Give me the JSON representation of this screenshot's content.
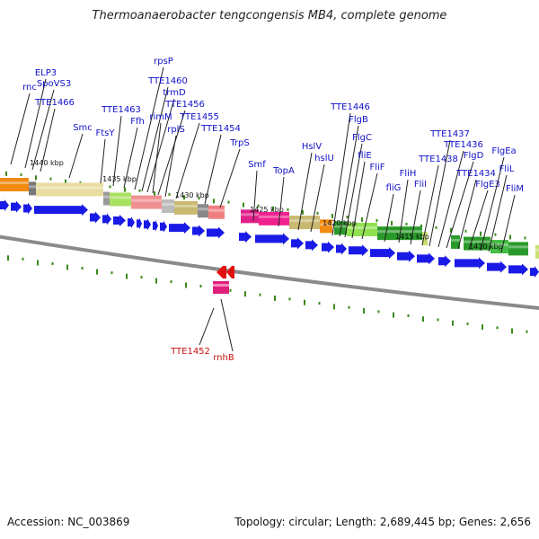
{
  "title": "Thermoanaerobacter tengcongensis MB4, complete genome",
  "footer": {
    "accession": "Accession: NC_003869",
    "summary": "Topology: circular; Length: 2,689,445 bp; Genes: 2,656"
  },
  "colors": {
    "forward_cds": "#1a1ae6",
    "label_blue": "#1010c8",
    "label_red": "#c81010",
    "tick": "#3a8a1a",
    "backbone": "#777777"
  },
  "kbp_ticks": [
    "1440 kbp",
    "1435 kbp",
    "1430 kbp",
    "1425 kbp",
    "1420 kbp",
    "1415 kbp",
    "1410 kbp"
  ],
  "gene_labels": [
    "rnc",
    "ELP3",
    "SpoVS3",
    "TTE1466",
    "Smc",
    "FtsY",
    "TTE1463",
    "Ffh",
    "rpsP",
    "TTE1460",
    "trmD",
    "rimM",
    "TTE1456",
    "rplS",
    "TTE1455",
    "TTE1454",
    "TrpS",
    "Smf",
    "TopA",
    "HslV",
    "hslU",
    "TTE1446",
    "FlgB",
    "FlgC",
    "fliE",
    "FliF",
    "fliG",
    "FliH",
    "FliI",
    "TTE1438",
    "TTE1437",
    "TTE1436",
    "FlgD",
    "TTE1434",
    "FlgE3",
    "FlgEa",
    "FliL",
    "FliM"
  ],
  "reverse_labels": [
    "TTE1452",
    "rnhB"
  ]
}
